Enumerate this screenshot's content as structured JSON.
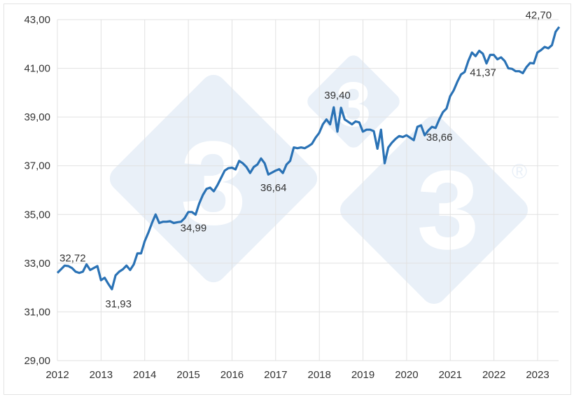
{
  "chart_data": {
    "type": "line",
    "title": "",
    "xlabel": "",
    "ylabel": "",
    "ylim": [
      29,
      43
    ],
    "xlim": [
      2012,
      2023.5
    ],
    "grid": true,
    "legend": null,
    "y_ticks": [
      "29,00",
      "31,00",
      "33,00",
      "35,00",
      "37,00",
      "39,00",
      "41,00",
      "43,00"
    ],
    "x_ticks": [
      "2012",
      "2013",
      "2014",
      "2015",
      "2016",
      "2017",
      "2018",
      "2019",
      "2020",
      "2021",
      "2022",
      "2023"
    ],
    "line_color": "#2a72b5",
    "series": [
      {
        "name": "series",
        "x_start": 2012.0,
        "step": 0.0833,
        "values": [
          32.6,
          32.75,
          32.9,
          32.88,
          32.8,
          32.65,
          32.6,
          32.65,
          32.95,
          32.72,
          32.8,
          32.88,
          32.3,
          32.4,
          32.15,
          31.93,
          32.5,
          32.65,
          32.75,
          32.9,
          32.72,
          32.95,
          33.4,
          33.4,
          33.9,
          34.25,
          34.65,
          35.0,
          34.65,
          34.7,
          34.7,
          34.72,
          34.65,
          34.68,
          34.7,
          34.85,
          35.1,
          35.1,
          34.99,
          35.45,
          35.8,
          36.05,
          36.1,
          35.95,
          36.2,
          36.5,
          36.8,
          36.9,
          36.92,
          36.85,
          37.2,
          37.1,
          36.95,
          36.7,
          36.95,
          37.05,
          37.3,
          37.1,
          36.64,
          36.72,
          36.8,
          36.86,
          36.7,
          37.05,
          37.2,
          37.75,
          37.72,
          37.75,
          37.72,
          37.8,
          37.9,
          38.15,
          38.35,
          38.7,
          38.9,
          38.7,
          39.4,
          38.4,
          39.38,
          38.9,
          38.8,
          38.7,
          38.82,
          38.78,
          38.4,
          38.48,
          38.48,
          38.42,
          37.7,
          38.48,
          37.1,
          37.75,
          37.95,
          38.1,
          38.22,
          38.18,
          38.25,
          38.15,
          38.05,
          38.6,
          38.66,
          38.25,
          38.45,
          38.6,
          38.55,
          38.9,
          39.2,
          39.35,
          39.85,
          40.1,
          40.45,
          40.75,
          40.85,
          41.3,
          41.65,
          41.5,
          41.72,
          41.6,
          41.2,
          41.55,
          41.55,
          41.37,
          41.45,
          41.3,
          41.0,
          40.98,
          40.88,
          40.88,
          40.8,
          41.05,
          41.22,
          41.2,
          41.65,
          41.75,
          41.88,
          41.82,
          41.95,
          42.5,
          42.7
        ]
      }
    ],
    "annotations": [
      {
        "label": "32,72",
        "x": 2012.35,
        "y": 32.72
      },
      {
        "label": "31,93",
        "x": 2013.27,
        "y": 31.93
      },
      {
        "label": "34,99",
        "x": 2015.15,
        "y": 34.99
      },
      {
        "label": "36,64",
        "x": 2016.95,
        "y": 36.64
      },
      {
        "label": "39,40",
        "x": 2018.35,
        "y": 39.4
      },
      {
        "label": "38,66",
        "x": 2020.75,
        "y": 38.66
      },
      {
        "label": "41,37",
        "x": 2021.75,
        "y": 41.37
      },
      {
        "label": "42,70",
        "x": 2023.15,
        "y": 42.7
      }
    ]
  },
  "watermark": {
    "glyph": "3",
    "registered": "®",
    "color": "#e9f0f8"
  }
}
